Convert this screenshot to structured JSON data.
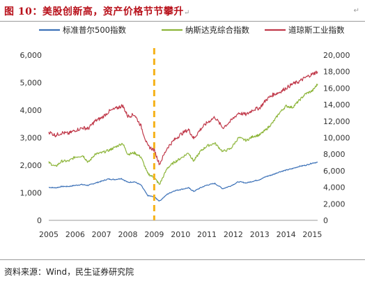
{
  "header": {
    "title": "图 10：美股创新高，资产价格节节攀升",
    "return_mark": "↵"
  },
  "footer": {
    "source": "资料来源：Wind，民生证券研究院"
  },
  "colors": {
    "title": "#b8101a",
    "sp500": "#3d72b8",
    "nasdaq": "#8db53a",
    "dow": "#c0394a",
    "marker": "#f5b21a"
  },
  "chart_data": {
    "type": "line",
    "legend_position": "top",
    "grid": false,
    "x_ticks": [
      "2005",
      "2006",
      "2007",
      "2008",
      "2009",
      "2010",
      "2011",
      "2012",
      "2013",
      "2014",
      "2015"
    ],
    "left_axis": {
      "ticks": [
        "0",
        "1,000",
        "2,000",
        "3,000",
        "4,000",
        "5,000",
        "6,000"
      ],
      "ylim": [
        0,
        6000
      ]
    },
    "right_axis": {
      "ticks": [
        "0",
        "2,000",
        "4,000",
        "6,000",
        "8,000",
        "10,000",
        "12,000",
        "14,000",
        "16,000",
        "18,000",
        "20,000"
      ],
      "ylim": [
        0,
        20000
      ]
    },
    "vertical_marker": {
      "x": 2009.0,
      "style": "dashed"
    },
    "series": [
      {
        "name": "标准普尔500指数",
        "axis": "left",
        "points": [
          [
            2005.0,
            1200
          ],
          [
            2005.25,
            1180
          ],
          [
            2005.5,
            1230
          ],
          [
            2005.75,
            1230
          ],
          [
            2006.0,
            1270
          ],
          [
            2006.25,
            1300
          ],
          [
            2006.5,
            1270
          ],
          [
            2006.75,
            1350
          ],
          [
            2007.0,
            1420
          ],
          [
            2007.25,
            1500
          ],
          [
            2007.5,
            1480
          ],
          [
            2007.75,
            1520
          ],
          [
            2008.0,
            1380
          ],
          [
            2008.25,
            1400
          ],
          [
            2008.5,
            1280
          ],
          [
            2008.75,
            900
          ],
          [
            2009.0,
            850
          ],
          [
            2009.2,
            700
          ],
          [
            2009.5,
            950
          ],
          [
            2009.75,
            1070
          ],
          [
            2010.0,
            1120
          ],
          [
            2010.3,
            1180
          ],
          [
            2010.5,
            1050
          ],
          [
            2010.75,
            1180
          ],
          [
            2011.0,
            1280
          ],
          [
            2011.3,
            1340
          ],
          [
            2011.6,
            1150
          ],
          [
            2011.9,
            1250
          ],
          [
            2012.2,
            1400
          ],
          [
            2012.5,
            1360
          ],
          [
            2012.75,
            1420
          ],
          [
            2013.0,
            1480
          ],
          [
            2013.25,
            1590
          ],
          [
            2013.5,
            1660
          ],
          [
            2013.75,
            1760
          ],
          [
            2014.0,
            1820
          ],
          [
            2014.25,
            1880
          ],
          [
            2014.5,
            1960
          ],
          [
            2014.75,
            2000
          ],
          [
            2015.0,
            2080
          ],
          [
            2015.2,
            2110
          ]
        ]
      },
      {
        "name": "纳斯达克综合指数",
        "axis": "left",
        "points": [
          [
            2005.0,
            2100
          ],
          [
            2005.25,
            1950
          ],
          [
            2005.5,
            2150
          ],
          [
            2005.75,
            2150
          ],
          [
            2006.0,
            2300
          ],
          [
            2006.3,
            2350
          ],
          [
            2006.5,
            2100
          ],
          [
            2006.75,
            2400
          ],
          [
            2007.0,
            2450
          ],
          [
            2007.3,
            2550
          ],
          [
            2007.5,
            2650
          ],
          [
            2007.8,
            2800
          ],
          [
            2008.0,
            2400
          ],
          [
            2008.25,
            2450
          ],
          [
            2008.5,
            2300
          ],
          [
            2008.75,
            1700
          ],
          [
            2009.0,
            1550
          ],
          [
            2009.2,
            1300
          ],
          [
            2009.5,
            1900
          ],
          [
            2009.75,
            2100
          ],
          [
            2010.0,
            2250
          ],
          [
            2010.3,
            2450
          ],
          [
            2010.5,
            2150
          ],
          [
            2010.75,
            2500
          ],
          [
            2011.0,
            2700
          ],
          [
            2011.3,
            2800
          ],
          [
            2011.6,
            2500
          ],
          [
            2011.9,
            2600
          ],
          [
            2012.2,
            3000
          ],
          [
            2012.5,
            2900
          ],
          [
            2012.75,
            3050
          ],
          [
            2013.0,
            3100
          ],
          [
            2013.25,
            3300
          ],
          [
            2013.5,
            3550
          ],
          [
            2013.75,
            3900
          ],
          [
            2014.0,
            4150
          ],
          [
            2014.25,
            4100
          ],
          [
            2014.5,
            4350
          ],
          [
            2014.75,
            4600
          ],
          [
            2015.0,
            4700
          ],
          [
            2015.2,
            4950
          ]
        ]
      },
      {
        "name": "道琼斯工业指数",
        "axis": "right",
        "points": [
          [
            2005.0,
            10700
          ],
          [
            2005.25,
            10300
          ],
          [
            2005.5,
            10600
          ],
          [
            2005.75,
            10500
          ],
          [
            2006.0,
            10900
          ],
          [
            2006.3,
            11200
          ],
          [
            2006.5,
            11100
          ],
          [
            2006.75,
            12000
          ],
          [
            2007.0,
            12400
          ],
          [
            2007.3,
            13200
          ],
          [
            2007.6,
            13600
          ],
          [
            2007.8,
            13900
          ],
          [
            2008.0,
            12600
          ],
          [
            2008.25,
            12800
          ],
          [
            2008.5,
            11400
          ],
          [
            2008.75,
            9000
          ],
          [
            2009.0,
            8500
          ],
          [
            2009.2,
            6800
          ],
          [
            2009.5,
            8800
          ],
          [
            2009.75,
            9700
          ],
          [
            2010.0,
            10400
          ],
          [
            2010.3,
            11000
          ],
          [
            2010.5,
            9900
          ],
          [
            2010.75,
            11000
          ],
          [
            2011.0,
            11800
          ],
          [
            2011.3,
            12500
          ],
          [
            2011.6,
            11200
          ],
          [
            2011.9,
            12000
          ],
          [
            2012.2,
            13000
          ],
          [
            2012.5,
            12800
          ],
          [
            2012.75,
            13400
          ],
          [
            2013.0,
            13600
          ],
          [
            2013.25,
            14600
          ],
          [
            2013.5,
            15200
          ],
          [
            2013.75,
            15500
          ],
          [
            2014.0,
            16000
          ],
          [
            2014.25,
            16500
          ],
          [
            2014.5,
            16800
          ],
          [
            2014.75,
            17300
          ],
          [
            2015.0,
            17700
          ],
          [
            2015.2,
            18000
          ]
        ]
      }
    ]
  }
}
